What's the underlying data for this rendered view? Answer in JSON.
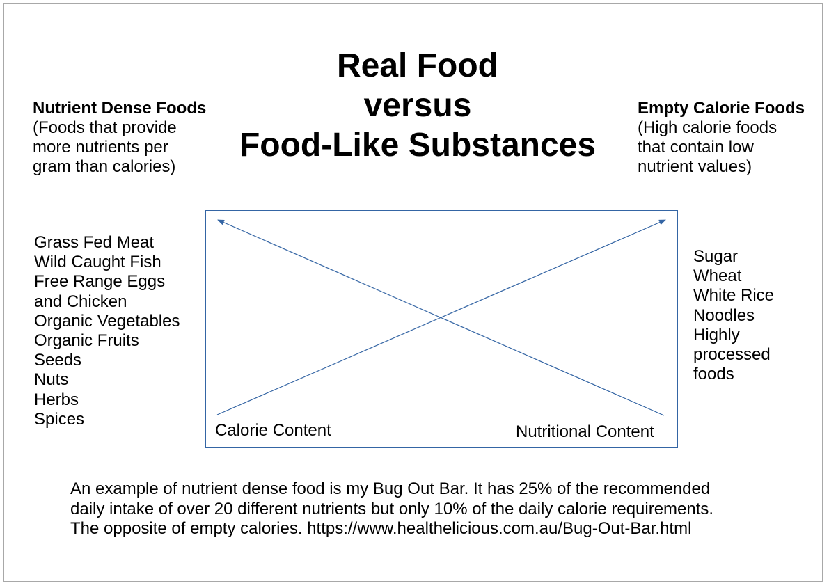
{
  "title": {
    "line1": "Real Food",
    "line2": "versus",
    "line3": "Food-Like Substances"
  },
  "left": {
    "heading": "Nutrient Dense Foods",
    "description": "(Foods that provide\nmore nutrients per\ngram than calories)",
    "items": [
      "Grass Fed Meat",
      "Wild Caught Fish",
      "Free Range Eggs",
      "and Chicken",
      "Organic Vegetables",
      "Organic Fruits",
      "Seeds",
      "Nuts",
      "Herbs",
      "Spices"
    ]
  },
  "right": {
    "heading": "Empty Calorie Foods",
    "description": "(High calorie foods\nthat contain low\nnutrient values)",
    "items": [
      "Sugar",
      "Wheat",
      "White Rice",
      "Noodles",
      "Highly",
      "processed",
      "foods"
    ]
  },
  "diagram": {
    "calorie_label": "Calorie Content",
    "nutrition_label": "Nutritional Content",
    "line_color": "#3465a4",
    "border_color": "#3465a4"
  },
  "footnote": {
    "line1": "An example of nutrient dense food is my Bug Out Bar. It has 25% of the recommended",
    "line2": "daily intake of over 20 different nutrients but only 10% of the daily calorie requirements.",
    "line3": "The opposite of empty calories. https://www.healthelicious.com.au/Bug-Out-Bar.html"
  }
}
